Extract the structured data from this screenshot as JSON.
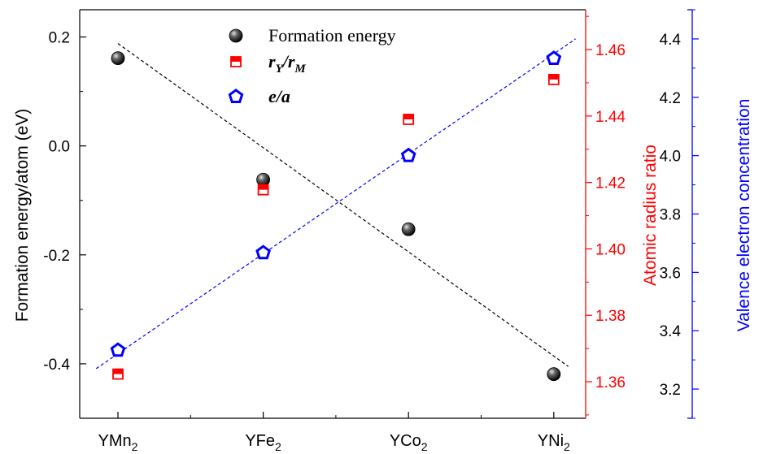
{
  "chart_data": {
    "type": "scatter",
    "categories": [
      "YMn2",
      "YFe2",
      "YCo2",
      "YNi2"
    ],
    "category_labels": [
      {
        "base": "YMn",
        "sub": "2"
      },
      {
        "base": "YFe",
        "sub": "2"
      },
      {
        "base": "YCo",
        "sub": "2"
      },
      {
        "base": "YNi",
        "sub": "2"
      }
    ],
    "axes": {
      "left": {
        "label": "Formation energy/atom (eV)",
        "ylim": [
          -0.5,
          0.25
        ],
        "ticks": [
          0.2,
          0.0,
          -0.2,
          -0.4
        ],
        "tick_labels": [
          "0.2",
          "0.0",
          "-0.2",
          "-0.4"
        ],
        "color": "#000000"
      },
      "right_inner": {
        "label": "Atomic radius ratio",
        "ylim": [
          1.349,
          1.472
        ],
        "ticks": [
          1.36,
          1.38,
          1.4,
          1.42,
          1.44,
          1.46
        ],
        "tick_labels": [
          "1.36",
          "1.38",
          "1.40",
          "1.42",
          "1.44",
          "1.46"
        ],
        "color": "#ff0000"
      },
      "right_outer": {
        "label": "Valence electron concentration",
        "ylim": [
          3.1,
          4.5
        ],
        "ticks": [
          3.2,
          3.4,
          3.6,
          3.8,
          4.0,
          4.2,
          4.4
        ],
        "tick_labels": [
          "3.2",
          "3.4",
          "3.6",
          "3.8",
          "4.0",
          "4.2",
          "4.4"
        ],
        "color": "#0000ff"
      }
    },
    "series": [
      {
        "name": "Formation energy",
        "axis": "left",
        "marker": "sphere",
        "color": "#000000",
        "values": [
          0.161,
          -0.062,
          -0.153,
          -0.419
        ]
      },
      {
        "name_parts": {
          "r1": "r",
          "sub1": "Y",
          "slash": "/",
          "r2": "r",
          "sub2": "M"
        },
        "axis": "right_inner",
        "marker": "half-filled-square",
        "color": "#ff0000",
        "values": [
          1.3623,
          1.4178,
          1.439,
          1.451
        ]
      },
      {
        "name": "e/a",
        "axis": "right_outer",
        "marker": "open-pentagon",
        "color": "#0000ff",
        "values": [
          3.333,
          3.667,
          4.0,
          4.333
        ]
      }
    ],
    "fit_lines": [
      {
        "axis": "left",
        "color": "#000000",
        "style": "dashed",
        "x": [
          0.0,
          3.1
        ],
        "y": [
          0.188,
          -0.405
        ]
      },
      {
        "axis": "right_outer",
        "color": "#0000ff",
        "style": "dashed",
        "x": [
          -0.15,
          3.15
        ],
        "y": [
          3.27,
          4.4
        ]
      }
    ],
    "legend": {
      "placement": "top-center"
    },
    "grid": false
  }
}
